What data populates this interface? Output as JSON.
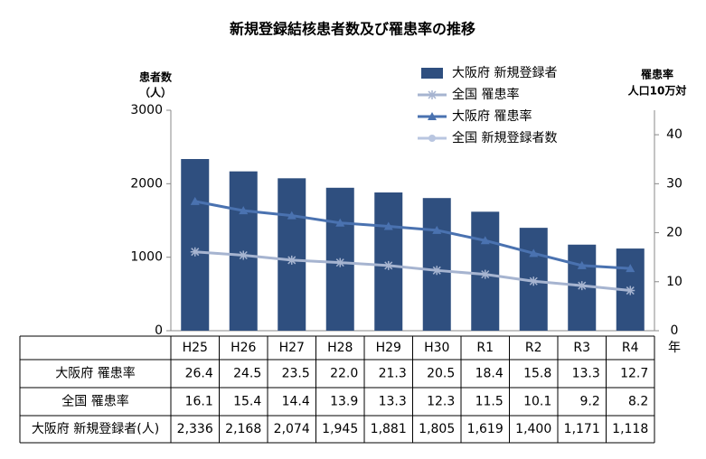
{
  "chart_data": {
    "type": "bar_line",
    "title": "新規登録結核患者数及び罹患率の推移",
    "y_label": [
      "患者数",
      "（人）"
    ],
    "y2_label": [
      "罹患率",
      "人口10万対"
    ],
    "x_unit": "年",
    "categories": [
      "H25",
      "H26",
      "H27",
      "H28",
      "H29",
      "H30",
      "R1",
      "R2",
      "R3",
      "R4"
    ],
    "series": [
      {
        "name": "大阪府 新規登録者",
        "type": "bar",
        "color": "#2f4f7f",
        "values": [
          2336,
          2168,
          2074,
          1945,
          1881,
          1805,
          1619,
          1400,
          1171,
          1118
        ],
        "value_labels": [
          "2,336",
          "2,168",
          "2,074",
          "1,945",
          "1,881",
          "1,805",
          "1,619",
          "1,400",
          "1,171",
          "1,118"
        ]
      },
      {
        "name": "全国 罹患率",
        "type": "line",
        "marker": "asterisk",
        "axis": "y2",
        "color": "#a6b4d0",
        "values": [
          16.1,
          15.4,
          14.4,
          13.9,
          13.3,
          12.3,
          11.5,
          10.1,
          9.2,
          8.2
        ]
      },
      {
        "name": "大阪府 罹患率",
        "type": "line",
        "marker": "triangle",
        "axis": "y2",
        "color": "#4a72b0",
        "values": [
          26.4,
          24.5,
          23.5,
          22,
          21.3,
          20.5,
          18.4,
          15.8,
          13.3,
          12.7
        ],
        "value_labels": [
          "26.4",
          "24.5",
          "23.5",
          "22.0",
          "21.3",
          "20.5",
          "18.4",
          "15.8",
          "13.3",
          "12.7"
        ]
      },
      {
        "name": "全国 新規登録者数",
        "type": "line",
        "marker": "circle",
        "color": "#b9c6e0",
        "values": [
          null,
          null,
          null,
          null,
          null,
          null,
          null,
          null,
          null,
          null
        ]
      }
    ],
    "table_row_labels": [
      "大阪府 罹患率",
      "全国 罹患率",
      "大阪府 新規登録者(人)"
    ],
    "ylim": [
      0,
      3000
    ],
    "yticks": [
      0,
      1000,
      2000,
      3000
    ],
    "y2lim": [
      0,
      45
    ],
    "y2ticks": [
      0,
      10,
      20,
      30,
      40
    ],
    "grid": false
  }
}
